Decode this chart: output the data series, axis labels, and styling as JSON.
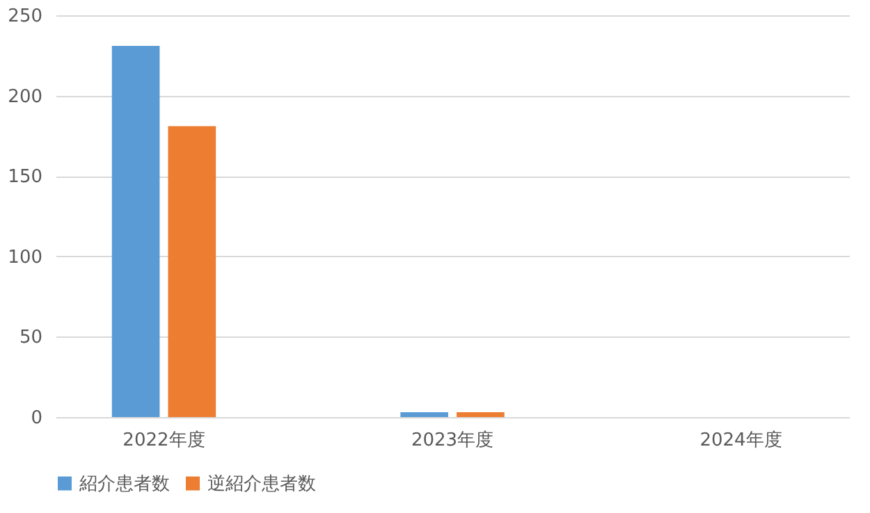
{
  "chart_data": {
    "type": "bar",
    "categories": [
      "2022年度",
      "2023年度",
      "2024年度"
    ],
    "series": [
      {
        "name": "紹介患者数",
        "color": "#5b9bd5",
        "values": [
          231,
          3,
          null
        ]
      },
      {
        "name": "逆紹介患者数",
        "color": "#ed7d31",
        "values": [
          181,
          3,
          null
        ]
      }
    ],
    "ylim": [
      0,
      250
    ],
    "yticks": [
      0,
      50,
      100,
      150,
      200,
      250
    ],
    "grid": "y",
    "legend": "bottom"
  }
}
